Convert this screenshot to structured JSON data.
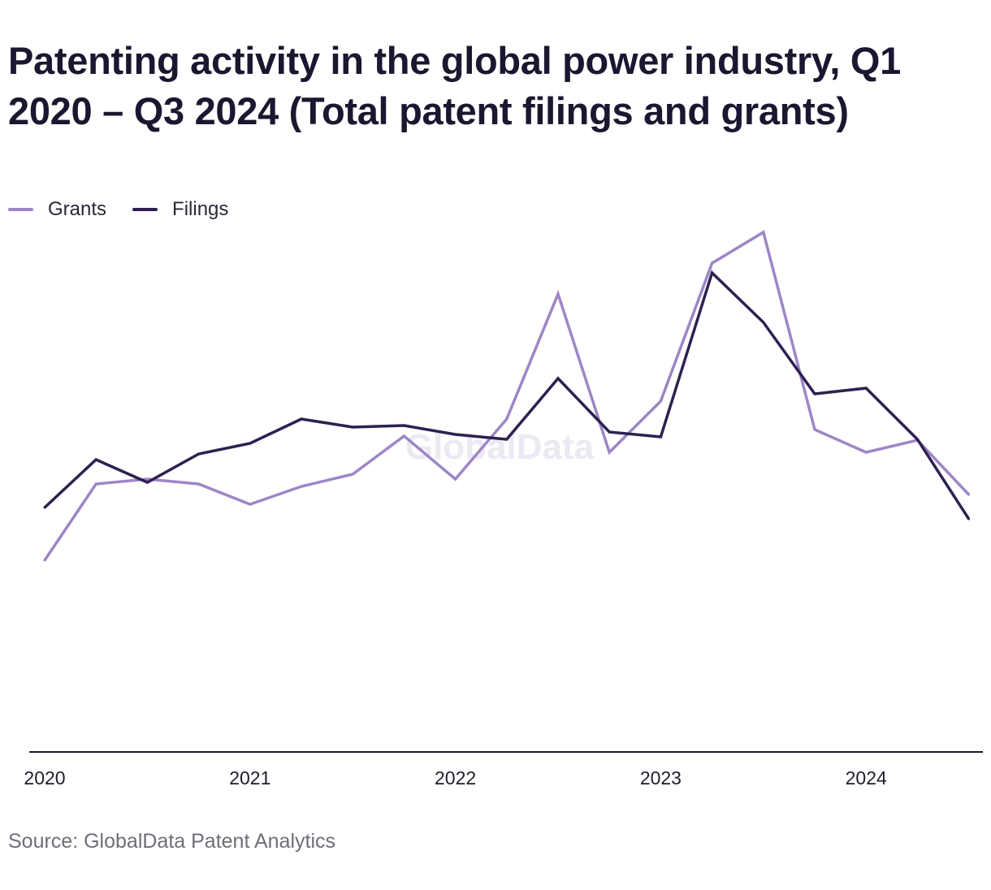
{
  "chart_data": {
    "type": "line",
    "title": "Patenting activity in the global power industry, Q1 2020 – Q3 2024 (Total patent filings and grants)",
    "xlabel": "",
    "ylabel": "",
    "x": [
      "Q1 2020",
      "Q2 2020",
      "Q3 2020",
      "Q4 2020",
      "Q1 2021",
      "Q2 2021",
      "Q3 2021",
      "Q4 2021",
      "Q1 2022",
      "Q2 2022",
      "Q3 2022",
      "Q4 2022",
      "Q1 2023",
      "Q2 2023",
      "Q3 2023",
      "Q4 2023",
      "Q1 2024",
      "Q2 2024",
      "Q3 2024"
    ],
    "x_tick_labels": [
      "2020",
      "2021",
      "2022",
      "2023",
      "2024"
    ],
    "x_tick_indices": [
      0,
      4,
      8,
      12,
      16
    ],
    "y_range": [
      0,
      600
    ],
    "grid": false,
    "legend_position": "top-left",
    "series": [
      {
        "name": "Grants",
        "color": "#9d86c6",
        "values": [
          236,
          330,
          336,
          330,
          305,
          327,
          342,
          389,
          336,
          410,
          564,
          369,
          432,
          602,
          640,
          397,
          369,
          384,
          317
        ]
      },
      {
        "name": "Filings",
        "color": "#2e2050",
        "values": [
          301,
          360,
          332,
          367,
          380,
          410,
          400,
          402,
          391,
          385,
          460,
          394,
          388,
          590,
          529,
          441,
          448,
          385,
          287
        ]
      }
    ],
    "watermark": "GlobalData",
    "source": "Source: GlobalData Patent Analytics"
  }
}
